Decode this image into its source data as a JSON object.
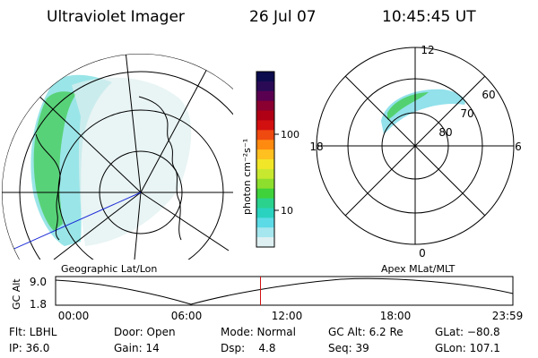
{
  "header": {
    "instrument": "Ultraviolet Imager",
    "date": "26 Jul 07",
    "time": "10:45:45 UT"
  },
  "geo_panel": {
    "label": "Geographic Lat/Lon"
  },
  "apex_panel": {
    "label": "Apex MLat/MLT",
    "mlt_labels": [
      "12",
      "18",
      "6",
      "0"
    ],
    "mlat_labels": [
      "60",
      "70",
      "80"
    ]
  },
  "colorbar": {
    "unit_label": "photon cm⁻²s⁻¹",
    "ticks": [
      "100",
      "10"
    ],
    "colors": [
      "#0b0b4e",
      "#2a0a55",
      "#5a0050",
      "#8a0030",
      "#b00015",
      "#d21010",
      "#ef4a10",
      "#ff8a10",
      "#ffc020",
      "#f2e628",
      "#c8e830",
      "#8ede2e",
      "#40d23a",
      "#2ad28e",
      "#2ad2c0",
      "#5cdbe6",
      "#a6e6ee",
      "#dff0f2"
    ]
  },
  "altitude_plot": {
    "axis_label": "GC Alt",
    "y_ticks": [
      "9.0",
      "1.8"
    ],
    "x_ticks": [
      "00:00",
      "06:00",
      "12:00",
      "18:00",
      "23:59"
    ],
    "current_time_fraction": 0.448
  },
  "info": {
    "filter": "Flt: LBHL",
    "ip": "IP: 36.0",
    "door": "Door: Open",
    "gain": "Gain: 14",
    "mode": "Mode: Normal",
    "dsp": "Dsp:    4.8",
    "gc_alt": "GC Alt: 6.2 Re",
    "seq": "Seq: 39",
    "glat": "GLat: −80.8",
    "glon": "GLon: 107.1"
  }
}
